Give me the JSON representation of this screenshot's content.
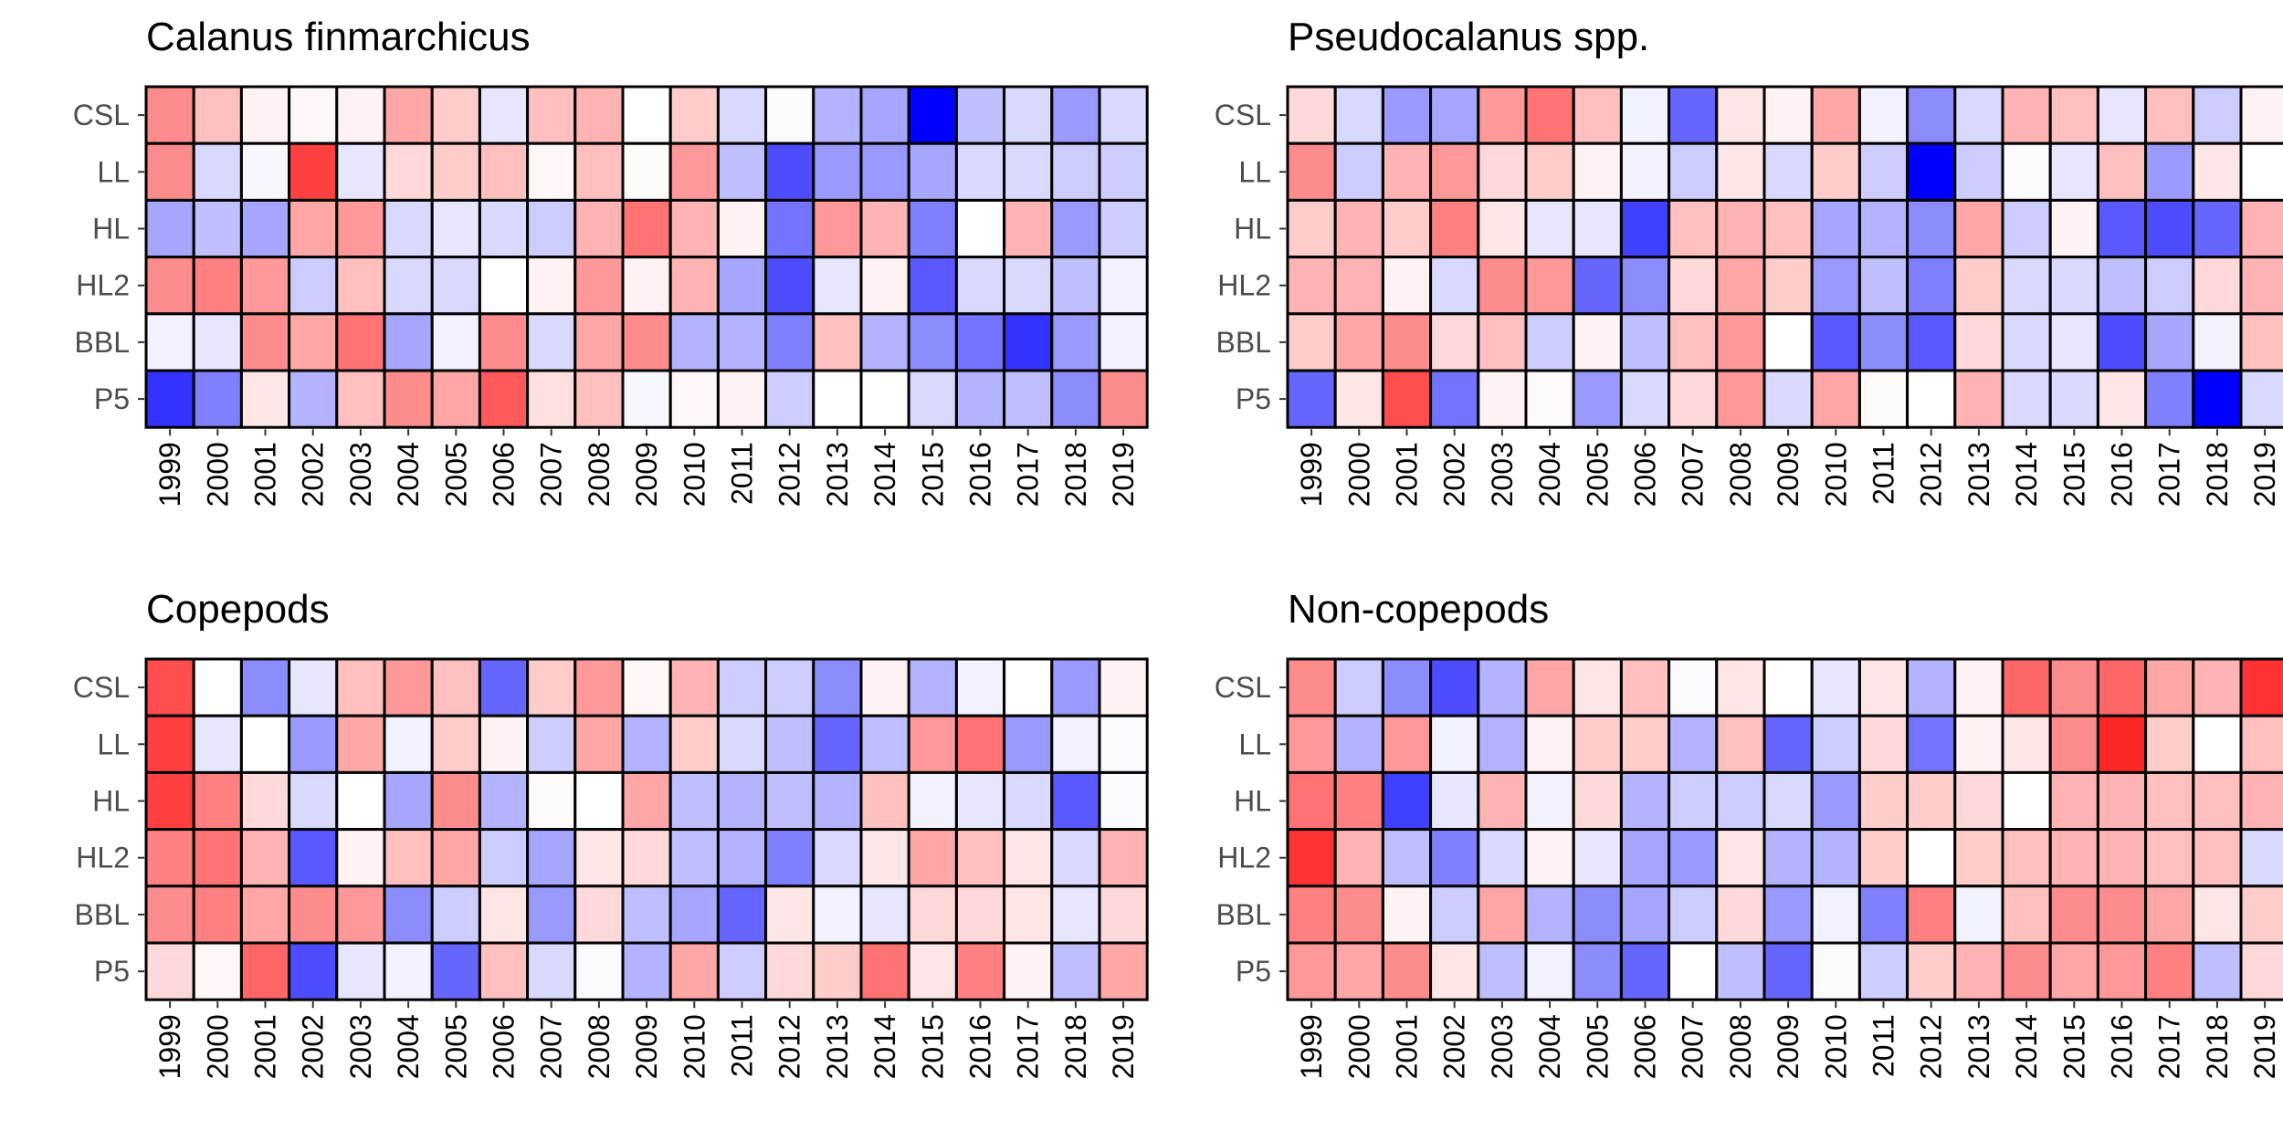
{
  "colors": {
    "low": "#0000ff",
    "mid": "#ffffff",
    "high": "#ff0000",
    "border": "#000000"
  },
  "chart_data": [
    {
      "type": "heatmap",
      "title": "Calanus finmarchicus",
      "x": [
        "1999",
        "2000",
        "2001",
        "2002",
        "2003",
        "2004",
        "2005",
        "2006",
        "2007",
        "2008",
        "2009",
        "2010",
        "2011",
        "2012",
        "2013",
        "2014",
        "2015",
        "2016",
        "2017",
        "2018",
        "2019"
      ],
      "y": [
        "CSL",
        "LL",
        "HL",
        "HL2",
        "BBL",
        "P5"
      ],
      "values": [
        [
          0.45,
          0.25,
          0.05,
          0.03,
          0.05,
          0.35,
          0.2,
          -0.1,
          0.25,
          0.3,
          0.0,
          0.2,
          -0.15,
          -0.02,
          -0.3,
          -0.35,
          -1.0,
          -0.25,
          -0.15,
          -0.4,
          -0.15
        ],
        [
          0.45,
          -0.15,
          -0.03,
          0.75,
          -0.1,
          0.15,
          0.2,
          0.25,
          0.03,
          0.25,
          0.02,
          0.4,
          -0.25,
          -0.7,
          -0.4,
          -0.4,
          -0.35,
          -0.15,
          -0.15,
          -0.2,
          -0.2
        ],
        [
          -0.35,
          -0.25,
          -0.35,
          0.35,
          0.4,
          -0.15,
          -0.1,
          -0.15,
          -0.2,
          0.3,
          0.55,
          0.3,
          0.05,
          -0.55,
          0.4,
          0.3,
          -0.5,
          0.0,
          0.3,
          -0.4,
          -0.2
        ],
        [
          0.45,
          0.5,
          0.4,
          -0.2,
          0.25,
          -0.15,
          -0.15,
          0.0,
          0.05,
          0.4,
          0.05,
          0.3,
          -0.35,
          -0.7,
          -0.1,
          0.05,
          -0.65,
          -0.15,
          -0.15,
          -0.25,
          -0.05
        ],
        [
          -0.05,
          -0.1,
          0.45,
          0.35,
          0.55,
          -0.35,
          -0.05,
          0.45,
          -0.15,
          0.35,
          0.45,
          -0.3,
          -0.3,
          -0.5,
          0.25,
          -0.3,
          -0.45,
          -0.55,
          -0.8,
          -0.4,
          -0.05
        ],
        [
          -0.8,
          -0.5,
          0.1,
          -0.3,
          0.25,
          0.45,
          0.35,
          0.65,
          0.12,
          0.25,
          -0.03,
          0.03,
          0.05,
          -0.2,
          0.0,
          0.0,
          -0.15,
          -0.3,
          -0.25,
          -0.45,
          0.45
        ]
      ]
    },
    {
      "type": "heatmap",
      "title": "Pseudocalanus spp.",
      "x": [
        "1999",
        "2000",
        "2001",
        "2002",
        "2003",
        "2004",
        "2005",
        "2006",
        "2007",
        "2008",
        "2009",
        "2010",
        "2011",
        "2012",
        "2013",
        "2014",
        "2015",
        "2016",
        "2017",
        "2018",
        "2019"
      ],
      "y": [
        "CSL",
        "LL",
        "HL",
        "HL2",
        "BBL",
        "P5"
      ],
      "values": [
        [
          0.15,
          -0.15,
          -0.4,
          -0.35,
          0.4,
          0.55,
          0.25,
          -0.05,
          -0.6,
          0.1,
          0.05,
          0.35,
          -0.05,
          -0.45,
          -0.15,
          0.3,
          0.25,
          -0.1,
          0.25,
          -0.2,
          0.05
        ],
        [
          0.45,
          -0.2,
          0.3,
          0.4,
          0.15,
          0.2,
          0.05,
          -0.05,
          -0.2,
          0.1,
          -0.15,
          0.2,
          -0.2,
          -1.0,
          -0.2,
          -0.02,
          -0.1,
          0.25,
          -0.4,
          0.1,
          0.0
        ],
        [
          0.2,
          0.3,
          0.2,
          0.5,
          0.1,
          -0.1,
          -0.1,
          -0.75,
          0.25,
          0.3,
          0.25,
          -0.35,
          -0.3,
          -0.45,
          0.35,
          -0.2,
          0.05,
          -0.65,
          -0.7,
          -0.6,
          0.3
        ],
        [
          0.3,
          0.3,
          0.05,
          -0.15,
          0.45,
          0.4,
          -0.6,
          -0.45,
          0.15,
          0.35,
          0.2,
          -0.4,
          -0.25,
          -0.5,
          0.2,
          -0.15,
          -0.15,
          -0.25,
          -0.2,
          0.15,
          0.3
        ],
        [
          0.2,
          0.35,
          0.45,
          0.15,
          0.25,
          -0.2,
          0.05,
          -0.25,
          0.25,
          0.4,
          0.0,
          -0.65,
          -0.45,
          -0.65,
          0.15,
          -0.15,
          -0.1,
          -0.7,
          -0.35,
          -0.05,
          0.25
        ],
        [
          -0.6,
          0.1,
          0.7,
          -0.55,
          0.05,
          0.02,
          -0.4,
          -0.15,
          0.15,
          0.4,
          -0.15,
          0.35,
          0.02,
          0.0,
          0.3,
          -0.15,
          -0.15,
          0.1,
          -0.5,
          -1.0,
          -0.15
        ]
      ]
    },
    {
      "type": "heatmap",
      "title": "Copepods",
      "x": [
        "1999",
        "2000",
        "2001",
        "2002",
        "2003",
        "2004",
        "2005",
        "2006",
        "2007",
        "2008",
        "2009",
        "2010",
        "2011",
        "2012",
        "2013",
        "2014",
        "2015",
        "2016",
        "2017",
        "2018",
        "2019"
      ],
      "y": [
        "CSL",
        "LL",
        "HL",
        "HL2",
        "BBL",
        "P5"
      ],
      "values": [
        [
          0.7,
          0.0,
          -0.45,
          -0.1,
          0.25,
          0.4,
          0.25,
          -0.6,
          0.2,
          0.4,
          0.03,
          0.3,
          -0.2,
          -0.2,
          -0.45,
          0.05,
          -0.3,
          -0.05,
          0.0,
          -0.4,
          0.05
        ],
        [
          0.75,
          -0.1,
          0.0,
          -0.4,
          0.35,
          -0.05,
          0.2,
          0.05,
          -0.2,
          0.35,
          -0.3,
          0.2,
          -0.15,
          -0.25,
          -0.6,
          -0.25,
          0.4,
          0.55,
          -0.4,
          -0.05,
          -0.02
        ],
        [
          0.75,
          0.5,
          0.15,
          -0.15,
          0.0,
          -0.35,
          0.45,
          -0.3,
          0.02,
          0.0,
          0.35,
          -0.25,
          -0.3,
          -0.25,
          -0.3,
          0.25,
          -0.05,
          -0.1,
          -0.15,
          -0.65,
          -0.02
        ],
        [
          0.5,
          0.55,
          0.3,
          -0.65,
          0.05,
          0.25,
          0.35,
          -0.2,
          -0.35,
          0.1,
          0.15,
          -0.25,
          -0.3,
          -0.5,
          -0.15,
          0.1,
          0.35,
          0.25,
          0.1,
          -0.15,
          0.3
        ],
        [
          0.45,
          0.5,
          0.35,
          0.45,
          0.4,
          -0.45,
          -0.2,
          0.1,
          -0.4,
          0.15,
          -0.25,
          -0.35,
          -0.6,
          0.1,
          -0.05,
          -0.1,
          0.15,
          0.15,
          0.1,
          -0.1,
          0.15
        ],
        [
          0.15,
          0.03,
          0.6,
          -0.7,
          -0.1,
          -0.05,
          -0.6,
          0.25,
          -0.15,
          -0.02,
          -0.3,
          0.35,
          -0.2,
          0.15,
          0.2,
          0.55,
          0.1,
          0.5,
          0.05,
          -0.25,
          0.35
        ]
      ]
    },
    {
      "type": "heatmap",
      "title": "Non-copepods",
      "x": [
        "1999",
        "2000",
        "2001",
        "2002",
        "2003",
        "2004",
        "2005",
        "2006",
        "2007",
        "2008",
        "2009",
        "2010",
        "2011",
        "2012",
        "2013",
        "2014",
        "2015",
        "2016",
        "2017",
        "2018",
        "2019"
      ],
      "y": [
        "CSL",
        "LL",
        "HL",
        "HL2",
        "BBL",
        "P5"
      ],
      "values": [
        [
          0.45,
          -0.2,
          -0.45,
          -0.7,
          -0.3,
          0.35,
          0.1,
          0.25,
          -0.02,
          0.1,
          0.0,
          -0.1,
          0.1,
          -0.3,
          0.05,
          0.6,
          0.45,
          0.6,
          0.35,
          0.3,
          0.8
        ],
        [
          0.4,
          -0.3,
          0.4,
          -0.05,
          -0.3,
          0.05,
          0.2,
          0.2,
          -0.3,
          0.25,
          -0.6,
          -0.2,
          0.15,
          -0.55,
          0.05,
          0.1,
          0.45,
          0.85,
          0.2,
          0.0,
          0.25
        ],
        [
          0.55,
          0.5,
          -0.75,
          -0.1,
          0.3,
          -0.05,
          0.15,
          -0.3,
          -0.2,
          -0.2,
          -0.15,
          -0.4,
          0.2,
          0.2,
          0.15,
          0.0,
          0.3,
          0.3,
          0.25,
          0.25,
          0.3
        ],
        [
          0.8,
          0.3,
          -0.25,
          -0.5,
          -0.15,
          0.05,
          -0.1,
          -0.35,
          -0.4,
          0.1,
          -0.3,
          -0.3,
          0.2,
          0.0,
          0.2,
          0.25,
          0.3,
          0.3,
          0.25,
          0.25,
          -0.15
        ],
        [
          0.5,
          0.45,
          0.05,
          -0.2,
          0.35,
          -0.3,
          -0.45,
          -0.35,
          -0.2,
          0.15,
          -0.4,
          -0.05,
          -0.5,
          0.5,
          -0.05,
          0.25,
          0.45,
          0.45,
          0.35,
          0.1,
          0.2
        ],
        [
          0.4,
          0.35,
          0.45,
          0.1,
          -0.25,
          -0.05,
          -0.45,
          -0.6,
          0.0,
          -0.25,
          -0.6,
          -0.02,
          -0.2,
          0.2,
          0.3,
          0.45,
          0.35,
          0.4,
          0.5,
          -0.25,
          0.15
        ]
      ]
    }
  ]
}
